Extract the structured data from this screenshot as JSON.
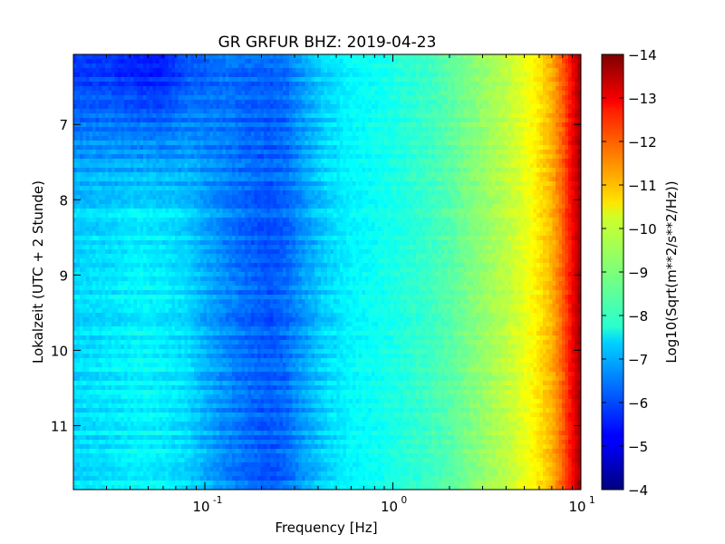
{
  "chart_data": {
    "type": "heatmap",
    "title": "GR GRFUR BHZ: 2019-04-23",
    "xlabel": "Frequency [Hz]",
    "ylabel": "Lokalzeit (UTC + 2 Stunde)",
    "x_scale": "log",
    "xlim": [
      0.02,
      10
    ],
    "ylim": [
      6.07,
      11.85
    ],
    "y_inverted": true,
    "x_ticks": [
      {
        "value": 0.1,
        "base": "10",
        "exp": "-1"
      },
      {
        "value": 1,
        "base": "10",
        "exp": "0"
      },
      {
        "value": 10,
        "base": "10",
        "exp": "1"
      }
    ],
    "y_ticks": [
      7,
      8,
      9,
      10,
      11
    ],
    "colormap": "jet",
    "colorbar": {
      "label": "Log10(Sqrt(m**2/s**2/Hz))",
      "range": [
        -14,
        -4
      ],
      "ticks": [
        -4,
        -5,
        -6,
        -7,
        -8,
        -9,
        -10,
        -11,
        -12,
        -13,
        -14
      ]
    },
    "spectrum_profile": {
      "frequency_hz": [
        0.02,
        0.03,
        0.045,
        0.06,
        0.08,
        0.1,
        0.13,
        0.17,
        0.22,
        0.27,
        0.35,
        0.45,
        0.6,
        0.8,
        1.0,
        1.5,
        2.0,
        3.0,
        4.0,
        5.0,
        6.0,
        7.0,
        8.0,
        9.0,
        10.0
      ],
      "level_morning": [
        -5.6,
        -5.6,
        -5.3,
        -5.3,
        -5.9,
        -6.1,
        -6.3,
        -6.2,
        -6.2,
        -6.3,
        -6.9,
        -7.4,
        -7.7,
        -7.85,
        -8.0,
        -8.3,
        -8.6,
        -9.2,
        -9.6,
        -10.0,
        -10.5,
        -11.0,
        -11.8,
        -12.8,
        -13.8
      ],
      "level_late": [
        -7.4,
        -7.5,
        -7.7,
        -7.6,
        -7.4,
        -7.0,
        -6.6,
        -6.3,
        -6.1,
        -6.3,
        -6.9,
        -7.4,
        -7.7,
        -7.85,
        -8.0,
        -8.3,
        -8.6,
        -9.2,
        -9.6,
        -10.0,
        -10.5,
        -11.0,
        -11.8,
        -12.8,
        -13.8
      ]
    }
  }
}
